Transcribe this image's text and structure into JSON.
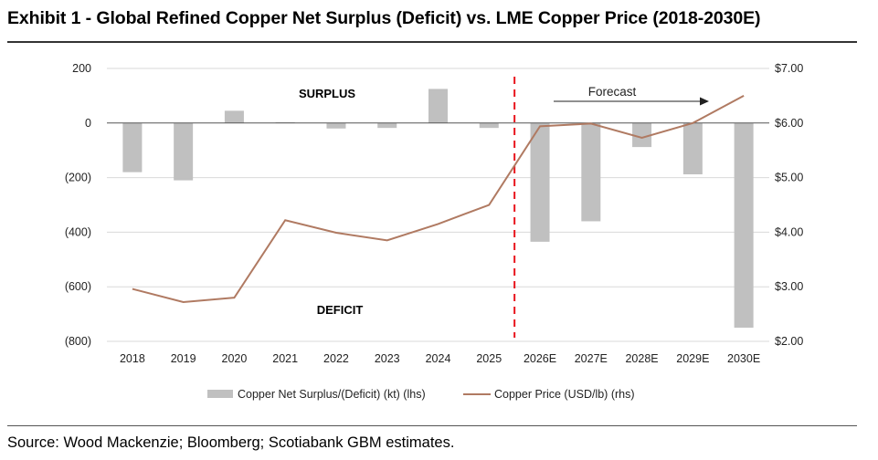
{
  "header": {
    "title": "Exhibit 1 - Global Refined Copper Net Surplus (Deficit) vs. LME Copper Price (2018-2030E)"
  },
  "footer": {
    "source": "Source: Wood Mackenzie; Bloomberg; Scotiabank GBM estimates."
  },
  "chart_data": {
    "type": "bar",
    "categories": [
      "2018",
      "2019",
      "2020",
      "2021",
      "2022",
      "2023",
      "2024",
      "2025",
      "2026E",
      "2027E",
      "2028E",
      "2029E",
      "2030E"
    ],
    "series": [
      {
        "name": "Copper Net Surplus/(Deficit) (kt) (lhs)",
        "type": "bar",
        "axis": "left",
        "color": "#c0c0c0",
        "values": [
          -180,
          -210,
          45,
          3,
          -20,
          -18,
          125,
          -18,
          -435,
          -360,
          -88,
          -188,
          -750
        ]
      },
      {
        "name": "Copper Price (USD/lb) (rhs)",
        "type": "line",
        "axis": "right",
        "color": "#b07a62",
        "values": [
          2.96,
          2.72,
          2.8,
          4.22,
          3.99,
          3.85,
          4.15,
          4.5,
          5.94,
          5.99,
          5.73,
          6.0,
          6.5
        ]
      }
    ],
    "y_left": {
      "range": [
        -800,
        200
      ],
      "ticks": [
        200,
        0,
        -200,
        -400,
        -600,
        -800
      ],
      "tick_labels": [
        "200",
        "0",
        "(200)",
        "(400)",
        "(600)",
        "(800)"
      ]
    },
    "y_right": {
      "range": [
        2.0,
        7.0
      ],
      "ticks": [
        7,
        6,
        5,
        4,
        3,
        2
      ],
      "tick_labels": [
        "$7.00",
        "$6.00",
        "$5.00",
        "$4.00",
        "$3.00",
        "$2.00"
      ]
    },
    "annotations": {
      "surplus": "SURPLUS",
      "deficit": "DEFICIT",
      "forecast": "Forecast",
      "forecast_divider_after": "2025",
      "divider_color": "#e8141c"
    },
    "grid": "horizontal",
    "legend_position": "bottom"
  }
}
